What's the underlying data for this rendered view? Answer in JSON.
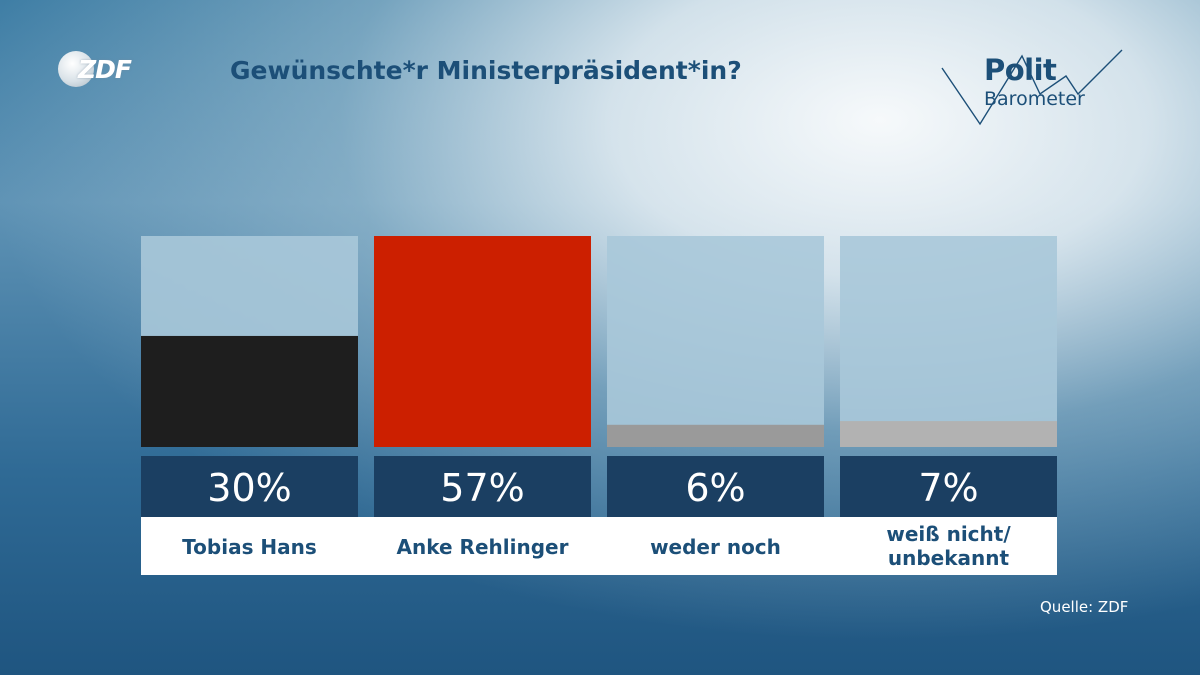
{
  "header": {
    "logo_text": "ZDF",
    "title": "Gewünschte*r Ministerpräsident*in?"
  },
  "brand": {
    "line1": "Polit",
    "line2": "Barometer"
  },
  "source": "Quelle: ZDF",
  "chart_data": {
    "type": "bar",
    "title": "Gewünschte*r Ministerpräsident*in?",
    "categories": [
      [
        "Tobias Hans"
      ],
      [
        "Anke Rehlinger"
      ],
      [
        "weder noch"
      ],
      [
        "weiß nicht/",
        "unbekannt"
      ]
    ],
    "values": [
      30,
      57,
      6,
      7
    ],
    "value_labels": [
      "30%",
      "57%",
      "6%",
      "7%"
    ],
    "colors": [
      "#1e1e1e",
      "#cc1f00",
      "#9a9a9a",
      "#b2b2b2"
    ],
    "ylim": [
      0,
      57
    ],
    "grid": false,
    "legend": "none"
  }
}
